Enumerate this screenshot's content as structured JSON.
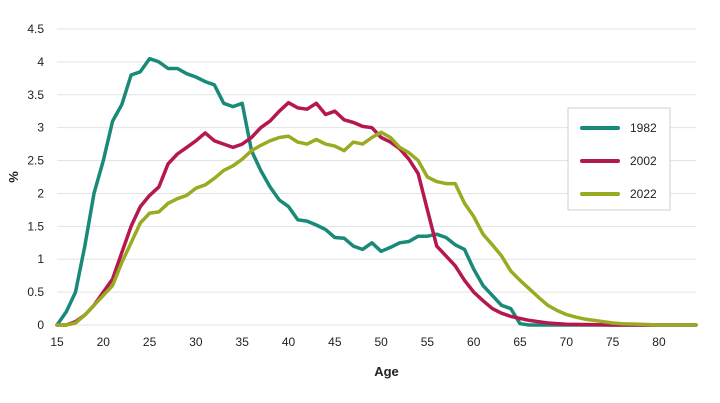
{
  "chart_data": {
    "type": "line",
    "title": "",
    "xlabel": "Age",
    "ylabel": "%",
    "xlim": [
      15,
      84
    ],
    "ylim": [
      0,
      4.5
    ],
    "x_ticks": [
      15,
      20,
      25,
      30,
      35,
      40,
      45,
      50,
      55,
      60,
      65,
      70,
      75,
      80
    ],
    "y_ticks": [
      0,
      0.5,
      1,
      1.5,
      2,
      2.5,
      3,
      3.5,
      4,
      4.5
    ],
    "y_tick_labels": [
      "0",
      "0.5",
      "1",
      "1.5",
      "2",
      "2.5",
      "3",
      "3.5",
      "4",
      "4.5"
    ],
    "grid": "horizontal",
    "legend_position": "right",
    "series": [
      {
        "name": "1982",
        "color": "#1a8a78",
        "points": [
          [
            15,
            0
          ],
          [
            16,
            0.2
          ],
          [
            17,
            0.5
          ],
          [
            18,
            1.2
          ],
          [
            19,
            2.0
          ],
          [
            20,
            2.5
          ],
          [
            21,
            3.1
          ],
          [
            22,
            3.35
          ],
          [
            23,
            3.8
          ],
          [
            24,
            3.85
          ],
          [
            25,
            4.05
          ],
          [
            26,
            4.0
          ],
          [
            27,
            3.9
          ],
          [
            28,
            3.9
          ],
          [
            29,
            3.82
          ],
          [
            30,
            3.77
          ],
          [
            31,
            3.7
          ],
          [
            32,
            3.65
          ],
          [
            33,
            3.37
          ],
          [
            34,
            3.32
          ],
          [
            35,
            3.37
          ],
          [
            36,
            2.65
          ],
          [
            37,
            2.35
          ],
          [
            38,
            2.1
          ],
          [
            39,
            1.9
          ],
          [
            40,
            1.8
          ],
          [
            41,
            1.6
          ],
          [
            42,
            1.58
          ],
          [
            43,
            1.52
          ],
          [
            44,
            1.45
          ],
          [
            45,
            1.33
          ],
          [
            46,
            1.32
          ],
          [
            47,
            1.2
          ],
          [
            48,
            1.15
          ],
          [
            49,
            1.25
          ],
          [
            50,
            1.12
          ],
          [
            51,
            1.18
          ],
          [
            52,
            1.25
          ],
          [
            53,
            1.27
          ],
          [
            54,
            1.35
          ],
          [
            55,
            1.35
          ],
          [
            56,
            1.38
          ],
          [
            57,
            1.33
          ],
          [
            58,
            1.22
          ],
          [
            59,
            1.15
          ],
          [
            60,
            0.85
          ],
          [
            61,
            0.6
          ],
          [
            62,
            0.45
          ],
          [
            63,
            0.3
          ],
          [
            64,
            0.25
          ],
          [
            65,
            0.02
          ],
          [
            66,
            0
          ],
          [
            70,
            0
          ],
          [
            75,
            0
          ],
          [
            80,
            0
          ],
          [
            84,
            0
          ]
        ]
      },
      {
        "name": "2002",
        "color": "#b5174f",
        "points": [
          [
            15,
            0
          ],
          [
            16,
            0
          ],
          [
            17,
            0.05
          ],
          [
            18,
            0.15
          ],
          [
            19,
            0.3
          ],
          [
            20,
            0.5
          ],
          [
            21,
            0.7
          ],
          [
            22,
            1.1
          ],
          [
            23,
            1.5
          ],
          [
            24,
            1.8
          ],
          [
            25,
            1.97
          ],
          [
            26,
            2.1
          ],
          [
            27,
            2.45
          ],
          [
            28,
            2.6
          ],
          [
            29,
            2.7
          ],
          [
            30,
            2.8
          ],
          [
            31,
            2.92
          ],
          [
            32,
            2.8
          ],
          [
            33,
            2.75
          ],
          [
            34,
            2.7
          ],
          [
            35,
            2.75
          ],
          [
            36,
            2.85
          ],
          [
            37,
            3.0
          ],
          [
            38,
            3.1
          ],
          [
            39,
            3.25
          ],
          [
            40,
            3.38
          ],
          [
            41,
            3.3
          ],
          [
            42,
            3.28
          ],
          [
            43,
            3.37
          ],
          [
            44,
            3.2
          ],
          [
            45,
            3.25
          ],
          [
            46,
            3.12
          ],
          [
            47,
            3.08
          ],
          [
            48,
            3.02
          ],
          [
            49,
            3.0
          ],
          [
            50,
            2.85
          ],
          [
            51,
            2.78
          ],
          [
            52,
            2.68
          ],
          [
            53,
            2.52
          ],
          [
            54,
            2.3
          ],
          [
            55,
            1.75
          ],
          [
            56,
            1.2
          ],
          [
            57,
            1.05
          ],
          [
            58,
            0.9
          ],
          [
            59,
            0.68
          ],
          [
            60,
            0.5
          ],
          [
            61,
            0.37
          ],
          [
            62,
            0.25
          ],
          [
            63,
            0.18
          ],
          [
            64,
            0.13
          ],
          [
            65,
            0.1
          ],
          [
            66,
            0.07
          ],
          [
            67,
            0.05
          ],
          [
            68,
            0.03
          ],
          [
            70,
            0.01
          ],
          [
            75,
            0
          ],
          [
            80,
            0
          ],
          [
            84,
            0
          ]
        ]
      },
      {
        "name": "2022",
        "color": "#9aab21",
        "points": [
          [
            15,
            0
          ],
          [
            16,
            0
          ],
          [
            17,
            0.03
          ],
          [
            18,
            0.15
          ],
          [
            19,
            0.3
          ],
          [
            20,
            0.45
          ],
          [
            21,
            0.6
          ],
          [
            22,
            0.95
          ],
          [
            23,
            1.25
          ],
          [
            24,
            1.55
          ],
          [
            25,
            1.7
          ],
          [
            26,
            1.72
          ],
          [
            27,
            1.85
          ],
          [
            28,
            1.92
          ],
          [
            29,
            1.97
          ],
          [
            30,
            2.08
          ],
          [
            31,
            2.13
          ],
          [
            32,
            2.23
          ],
          [
            33,
            2.35
          ],
          [
            34,
            2.42
          ],
          [
            35,
            2.52
          ],
          [
            36,
            2.65
          ],
          [
            37,
            2.73
          ],
          [
            38,
            2.8
          ],
          [
            39,
            2.85
          ],
          [
            40,
            2.87
          ],
          [
            41,
            2.78
          ],
          [
            42,
            2.75
          ],
          [
            43,
            2.82
          ],
          [
            44,
            2.75
          ],
          [
            45,
            2.72
          ],
          [
            46,
            2.65
          ],
          [
            47,
            2.78
          ],
          [
            48,
            2.75
          ],
          [
            49,
            2.85
          ],
          [
            50,
            2.93
          ],
          [
            51,
            2.85
          ],
          [
            52,
            2.7
          ],
          [
            53,
            2.62
          ],
          [
            54,
            2.5
          ],
          [
            55,
            2.25
          ],
          [
            56,
            2.18
          ],
          [
            57,
            2.15
          ],
          [
            58,
            2.15
          ],
          [
            59,
            1.85
          ],
          [
            60,
            1.65
          ],
          [
            61,
            1.38
          ],
          [
            62,
            1.22
          ],
          [
            63,
            1.05
          ],
          [
            64,
            0.82
          ],
          [
            65,
            0.68
          ],
          [
            66,
            0.55
          ],
          [
            67,
            0.42
          ],
          [
            68,
            0.3
          ],
          [
            69,
            0.22
          ],
          [
            70,
            0.16
          ],
          [
            71,
            0.12
          ],
          [
            72,
            0.09
          ],
          [
            73,
            0.07
          ],
          [
            74,
            0.05
          ],
          [
            75,
            0.03
          ],
          [
            76,
            0.02
          ],
          [
            78,
            0.01
          ],
          [
            80,
            0
          ],
          [
            84,
            0
          ]
        ]
      }
    ]
  }
}
